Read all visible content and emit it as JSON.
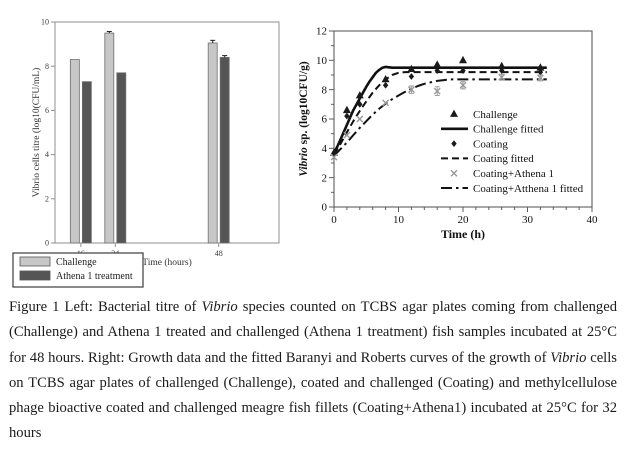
{
  "figure": {
    "caption_segments": [
      {
        "text": "Figure 1 Left: Bacterial titre of ",
        "italic": false
      },
      {
        "text": "Vibrio",
        "italic": true
      },
      {
        "text": " species counted on TCBS agar plates coming from challenged (Challenge) and Athena 1 treated and challenged (Athena 1 treatment) fish samples incubated at 25°C for 48 hours. Right: Growth data and the fitted Baranyi and Roberts curves of the growth of ",
        "italic": false
      },
      {
        "text": "Vibrio",
        "italic": true
      },
      {
        "text": " cells on TCBS agar plates of challenged (Challenge), coated and challenged (Coating) and methylcellulose phage bioactive coated and challenged meagre fish fillets (Coating+Athena1) incubated at 25°C for 32 hours",
        "italic": false
      }
    ]
  },
  "chart_data": [
    {
      "type": "bar",
      "title": "",
      "xlabel": "Time (hours)",
      "ylabel": "Vibrio cells titre (log10(CFU/mL)",
      "ylim": [
        0,
        10
      ],
      "yticks": [
        0,
        2,
        4,
        6,
        8,
        10
      ],
      "categories": [
        "16",
        "24",
        "48"
      ],
      "category_times": [
        16,
        24,
        48
      ],
      "grid": false,
      "legend_position": "bottom-left-outside",
      "series": [
        {
          "name": "Challenge",
          "color": "#c7c7c7",
          "values": [
            8.3,
            9.5,
            9.05
          ],
          "errors": [
            0,
            0.07,
            0.12
          ]
        },
        {
          "name": "Athena 1 treatment",
          "color": "#555555",
          "values": [
            7.3,
            7.7,
            8.4
          ],
          "errors": [
            0,
            0,
            0.08
          ]
        }
      ]
    },
    {
      "type": "line",
      "title": "",
      "xlabel": "Time (h)",
      "ylabel_italic_part": "Vibrio",
      "ylabel_plain_part": " sp. (log10CFU/g)",
      "xlim": [
        0,
        40
      ],
      "ylim": [
        0,
        12
      ],
      "xticks": [
        0,
        10,
        20,
        30,
        40
      ],
      "yticks": [
        0,
        2,
        4,
        6,
        8,
        10,
        12
      ],
      "x_minor_step": 2,
      "y_minor_step": 1,
      "grid": false,
      "legend_position": "right-middle-inside",
      "series": [
        {
          "name": "Challenge",
          "kind": "scatter",
          "marker": "triangle",
          "color": "#1a1a1a",
          "x": [
            0,
            2,
            4,
            8,
            12,
            16,
            20,
            26,
            32
          ],
          "y": [
            3.7,
            6.6,
            7.6,
            8.7,
            9.4,
            9.7,
            10.0,
            9.6,
            9.5
          ],
          "yerr": [
            0,
            0,
            0,
            0,
            0,
            0,
            0,
            0,
            0
          ]
        },
        {
          "name": "Challenge fitted",
          "kind": "line",
          "dash": "solid",
          "color": "#111111",
          "points": [
            [
              0,
              3.7
            ],
            [
              0.5,
              4.1
            ],
            [
              1,
              4.6
            ],
            [
              1.5,
              5.1
            ],
            [
              2,
              5.6
            ],
            [
              2.5,
              6.1
            ],
            [
              3,
              6.6
            ],
            [
              3.5,
              7.0
            ],
            [
              4,
              7.4
            ],
            [
              4.5,
              7.8
            ],
            [
              5,
              8.2
            ],
            [
              5.5,
              8.55
            ],
            [
              6,
              8.85
            ],
            [
              6.5,
              9.15
            ],
            [
              7,
              9.35
            ],
            [
              7.5,
              9.5
            ],
            [
              8,
              9.55
            ],
            [
              9,
              9.5
            ],
            [
              33,
              9.5
            ]
          ]
        },
        {
          "name": "Coating",
          "kind": "scatter",
          "marker": "diamond",
          "color": "#1a1a1a",
          "x": [
            0,
            2,
            4,
            8,
            12,
            16,
            20,
            26,
            32
          ],
          "y": [
            3.6,
            6.2,
            7.0,
            8.3,
            8.9,
            9.3,
            9.3,
            9.3,
            9.2
          ],
          "yerr": [
            0,
            0,
            0,
            0,
            0,
            0,
            0,
            0,
            0
          ]
        },
        {
          "name": "Coating fitted",
          "kind": "line",
          "dash": "dashed",
          "color": "#111111",
          "points": [
            [
              0,
              3.6
            ],
            [
              1,
              4.3
            ],
            [
              2,
              5.1
            ],
            [
              3,
              5.85
            ],
            [
              4,
              6.55
            ],
            [
              5,
              7.2
            ],
            [
              6,
              7.8
            ],
            [
              7,
              8.3
            ],
            [
              8,
              8.7
            ],
            [
              9,
              9.0
            ],
            [
              10,
              9.15
            ],
            [
              11,
              9.2
            ],
            [
              33,
              9.2
            ]
          ]
        },
        {
          "name": "Coating+Athena 1",
          "kind": "scatter",
          "marker": "x",
          "color": "#9a9a9a",
          "x": [
            0,
            2,
            4,
            8,
            12,
            16,
            20,
            26,
            32
          ],
          "y": [
            3.4,
            4.9,
            6.0,
            7.1,
            8.0,
            7.9,
            8.3,
            8.85,
            8.8
          ],
          "yerr": [
            0,
            0,
            0,
            0,
            0.25,
            0.3,
            0.25,
            0.2,
            0.2
          ]
        },
        {
          "name": "Coating+Atthena 1 fitted",
          "kind": "line",
          "dash": "dashdot",
          "color": "#111111",
          "points": [
            [
              0,
              3.5
            ],
            [
              1,
              3.95
            ],
            [
              2,
              4.4
            ],
            [
              3,
              4.9
            ],
            [
              4,
              5.4
            ],
            [
              5,
              5.85
            ],
            [
              6,
              6.3
            ],
            [
              7,
              6.7
            ],
            [
              8,
              7.05
            ],
            [
              9,
              7.35
            ],
            [
              10,
              7.6
            ],
            [
              11,
              7.85
            ],
            [
              12,
              8.05
            ],
            [
              13,
              8.25
            ],
            [
              14,
              8.4
            ],
            [
              15,
              8.5
            ],
            [
              16,
              8.6
            ],
            [
              17,
              8.65
            ],
            [
              18,
              8.7
            ],
            [
              20,
              8.7
            ],
            [
              33,
              8.7
            ]
          ]
        }
      ]
    }
  ]
}
